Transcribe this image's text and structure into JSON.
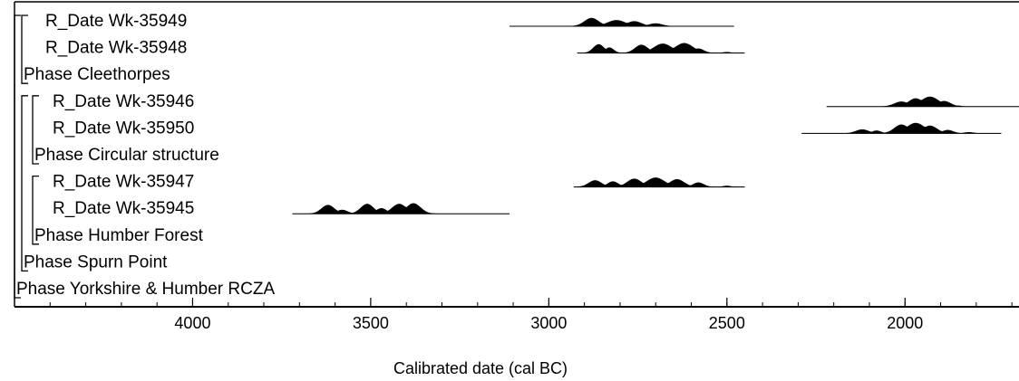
{
  "chart_data": {
    "type": "oxcal-multiplot",
    "title": "",
    "xlabel": "Calibrated date (cal BC)",
    "ylabel": "",
    "x_direction": "reversed",
    "xlim": [
      4500,
      1680
    ],
    "xticks": [
      4000,
      3500,
      3000,
      2500,
      2000
    ],
    "xtick_labels": [
      "4000",
      "3500",
      "3000",
      "2500",
      "2000"
    ],
    "rows": [
      {
        "label": "R_Date Wk-35949",
        "kind": "date",
        "depth": 2,
        "range": [
          3110,
          2480
        ],
        "peaks": [
          [
            2880,
            0.75,
            20
          ],
          [
            2810,
            0.55,
            25
          ],
          [
            2760,
            0.45,
            20
          ],
          [
            2700,
            0.25,
            18
          ]
        ]
      },
      {
        "label": "R_Date Wk-35948",
        "kind": "date",
        "depth": 2,
        "range": [
          2920,
          2450
        ],
        "peaks": [
          [
            2860,
            0.8,
            15
          ],
          [
            2830,
            0.5,
            12
          ],
          [
            2740,
            0.75,
            18
          ],
          [
            2680,
            0.85,
            25
          ],
          [
            2620,
            0.9,
            25
          ],
          [
            2580,
            0.4,
            15
          ],
          [
            2500,
            0.08,
            10
          ]
        ]
      },
      {
        "label": "Phase Cleethorpes",
        "kind": "phase",
        "depth": 1
      },
      {
        "label": "R_Date Wk-35946",
        "kind": "date",
        "depth": 3,
        "range": [
          2220,
          1680
        ],
        "peaks": [
          [
            2010,
            0.45,
            20
          ],
          [
            1970,
            0.75,
            20
          ],
          [
            1930,
            0.9,
            25
          ],
          [
            1890,
            0.5,
            18
          ],
          [
            1850,
            0.08,
            8
          ]
        ]
      },
      {
        "label": "R_Date Wk-35950",
        "kind": "date",
        "depth": 3,
        "range": [
          2290,
          1730
        ],
        "peaks": [
          [
            2120,
            0.35,
            18
          ],
          [
            2080,
            0.25,
            12
          ],
          [
            2010,
            0.8,
            20
          ],
          [
            1970,
            0.95,
            25
          ],
          [
            1930,
            0.7,
            20
          ],
          [
            1880,
            0.3,
            15
          ],
          [
            1820,
            0.1,
            12
          ]
        ]
      },
      {
        "label": "Phase Circular structure",
        "kind": "phase",
        "depth": 2
      },
      {
        "label": "R_Date Wk-35947",
        "kind": "date",
        "depth": 3,
        "range": [
          2930,
          2450
        ],
        "peaks": [
          [
            2870,
            0.6,
            18
          ],
          [
            2820,
            0.5,
            15
          ],
          [
            2760,
            0.75,
            20
          ],
          [
            2700,
            0.85,
            25
          ],
          [
            2640,
            0.7,
            20
          ],
          [
            2580,
            0.4,
            15
          ],
          [
            2500,
            0.1,
            10
          ]
        ]
      },
      {
        "label": "R_Date Wk-35945",
        "kind": "date",
        "depth": 3,
        "range": [
          3720,
          3110
        ],
        "peaks": [
          [
            3620,
            0.8,
            18
          ],
          [
            3580,
            0.35,
            15
          ],
          [
            3510,
            0.9,
            18
          ],
          [
            3470,
            0.5,
            15
          ],
          [
            3420,
            0.9,
            20
          ],
          [
            3380,
            0.95,
            20
          ]
        ]
      },
      {
        "label": "Phase Humber Forest",
        "kind": "phase",
        "depth": 2
      },
      {
        "label": "Phase Spurn Point",
        "kind": "phase",
        "depth": 1
      },
      {
        "label": "Phase Yorkshire & Humber RCZA",
        "kind": "phase",
        "depth": 0
      }
    ],
    "brackets": [
      {
        "depth": 0,
        "from": 0,
        "to": 10
      },
      {
        "depth": 1,
        "from": 0,
        "to": 2
      },
      {
        "depth": 1,
        "from": 3,
        "to": 9
      },
      {
        "depth": 2,
        "from": 3,
        "to": 5
      },
      {
        "depth": 2,
        "from": 6,
        "to": 8
      }
    ],
    "grid": false,
    "legend": "none"
  }
}
